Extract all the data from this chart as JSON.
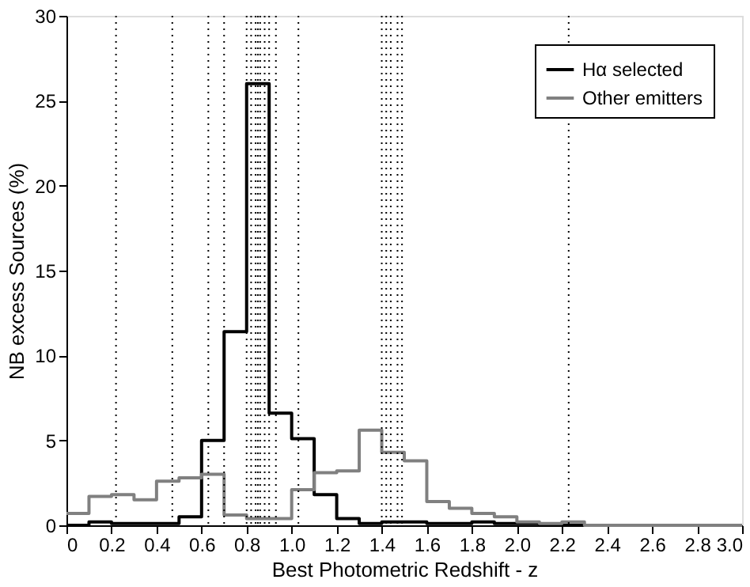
{
  "chart_data": {
    "type": "histogram",
    "xlabel": "Best Photometric Redshift - z",
    "ylabel": "NB excess Sources (%)",
    "bins": [
      0,
      0.1,
      0.2,
      0.3,
      0.4,
      0.5,
      0.6,
      0.7,
      0.8,
      0.9,
      1.0,
      1.1,
      1.2,
      1.3,
      1.4,
      1.5,
      1.6,
      1.7,
      1.8,
      1.9,
      2.0,
      2.1,
      2.2,
      2.3,
      2.4,
      2.5,
      2.6,
      2.7,
      2.8,
      2.9,
      3.0
    ],
    "series": [
      {
        "name": "Hα selected",
        "color": "#000000",
        "values": [
          0,
          0.2,
          0.1,
          0.1,
          0.1,
          0.5,
          5,
          11.4,
          26,
          6.6,
          5.1,
          1.8,
          0.4,
          0.1,
          0.2,
          0.2,
          0.1,
          0.1,
          0.2,
          0.1,
          0.1,
          0,
          0,
          0,
          0,
          0,
          0,
          0,
          0,
          0
        ]
      },
      {
        "name": "Other emitters",
        "color": "#808080",
        "values": [
          0.7,
          1.7,
          1.8,
          1.5,
          2.6,
          2.8,
          3.0,
          0.6,
          0.4,
          0.4,
          2.1,
          3.1,
          3.2,
          5.6,
          4.3,
          3.8,
          1.4,
          1.0,
          0.7,
          0.5,
          0.2,
          0.1,
          0.2,
          0,
          0,
          0,
          0,
          0,
          0,
          0
        ]
      }
    ],
    "xlim": [
      0,
      3
    ],
    "ylim": [
      0,
      30
    ],
    "xticks": [
      0,
      0.2,
      0.4,
      0.6,
      0.8,
      {
        "value": 1,
        "label": "1.0"
      },
      1.2,
      1.4,
      1.6,
      1.8,
      {
        "value": 2,
        "label": "2.0"
      },
      2.2,
      2.4,
      2.6,
      2.8,
      {
        "value": 3,
        "label": "3.0"
      }
    ],
    "yticks": [
      0,
      5,
      10,
      15,
      20,
      25,
      30
    ],
    "ref_lines": [
      {
        "axis": "x",
        "value": 0.22,
        "color": "#000000",
        "line_style": "dotted"
      },
      {
        "axis": "x",
        "value": 0.47,
        "color": "#000000",
        "line_style": "dotted"
      },
      {
        "axis": "x",
        "value": 0.63,
        "color": "#000000",
        "line_style": "dotted"
      },
      {
        "axis": "x",
        "value": 0.7,
        "color": "#000000",
        "line_style": "dotted"
      },
      {
        "axis": "x",
        "value": 0.8,
        "color": "#000000",
        "line_style": "dotted"
      },
      {
        "axis": "x",
        "value": 0.82,
        "color": "#000000",
        "line_style": "dotted"
      },
      {
        "axis": "x",
        "value": 0.84,
        "color": "#000000",
        "line_style": "dotted"
      },
      {
        "axis": "x",
        "value": 0.85,
        "color": "#000000",
        "line_style": "dotted"
      },
      {
        "axis": "x",
        "value": 0.86,
        "color": "#000000",
        "line_style": "dotted"
      },
      {
        "axis": "x",
        "value": 0.88,
        "color": "#000000",
        "line_style": "dotted"
      },
      {
        "axis": "x",
        "value": 0.9,
        "color": "#000000",
        "line_style": "dotted"
      },
      {
        "axis": "x",
        "value": 0.93,
        "color": "#000000",
        "line_style": "dotted"
      },
      {
        "axis": "x",
        "value": 1.03,
        "color": "#000000",
        "line_style": "dotted"
      },
      {
        "axis": "x",
        "value": 1.4,
        "color": "#000000",
        "line_style": "dotted"
      },
      {
        "axis": "x",
        "value": 1.42,
        "color": "#000000",
        "line_style": "dotted"
      },
      {
        "axis": "x",
        "value": 1.44,
        "color": "#000000",
        "line_style": "dotted"
      },
      {
        "axis": "x",
        "value": 1.47,
        "color": "#000000",
        "line_style": "dotted"
      },
      {
        "axis": "x",
        "value": 1.49,
        "color": "#000000",
        "line_style": "dotted"
      },
      {
        "axis": "x",
        "value": 2.23,
        "color": "#000000",
        "line_style": "dotted"
      }
    ],
    "grid": false,
    "legend": "top right"
  }
}
